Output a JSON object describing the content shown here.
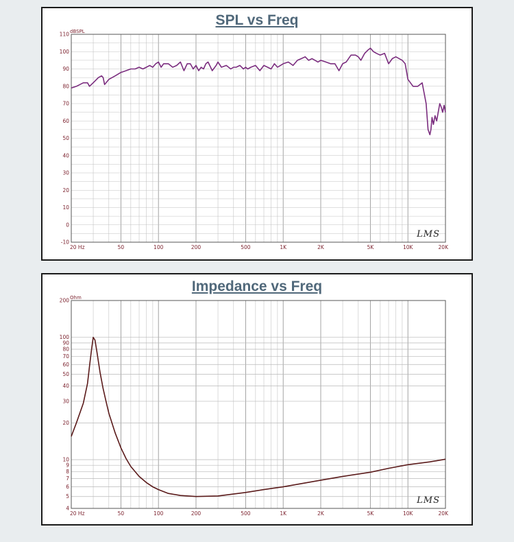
{
  "chart_data": [
    {
      "type": "line",
      "title": "SPL vs Freq",
      "ylabel": "dBSPL",
      "xscale": "log",
      "xlim": [
        20,
        20000
      ],
      "ylim": [
        -10,
        110
      ],
      "grid": true,
      "watermark": "LMS",
      "line_color": "#7a2c7e",
      "x_ticks": [
        {
          "value": 20,
          "label": "20  Hz"
        },
        {
          "value": 50,
          "label": "50"
        },
        {
          "value": 100,
          "label": "100"
        },
        {
          "value": 200,
          "label": "200"
        },
        {
          "value": 500,
          "label": "500"
        },
        {
          "value": 1000,
          "label": "1K"
        },
        {
          "value": 2000,
          "label": "2K"
        },
        {
          "value": 5000,
          "label": "5K"
        },
        {
          "value": 10000,
          "label": "10K"
        },
        {
          "value": 20000,
          "label": "20K"
        }
      ],
      "y_ticks": [
        {
          "value": 110,
          "label": "110"
        },
        {
          "value": 100,
          "label": "100"
        },
        {
          "value": 90,
          "label": "90"
        },
        {
          "value": 80,
          "label": "80"
        },
        {
          "value": 70,
          "label": "70"
        },
        {
          "value": 60,
          "label": "60"
        },
        {
          "value": 50,
          "label": "50"
        },
        {
          "value": 40,
          "label": "40"
        },
        {
          "value": 30,
          "label": "30"
        },
        {
          "value": 20,
          "label": "20"
        },
        {
          "value": 10,
          "label": "10"
        },
        {
          "value": 0,
          "label": "0"
        },
        {
          "value": -10,
          "label": "-10"
        }
      ],
      "series": [
        {
          "x": [
            20,
            22,
            25,
            27,
            28,
            30,
            33,
            35,
            36,
            37,
            40,
            45,
            50,
            55,
            60,
            65,
            70,
            75,
            80,
            85,
            90,
            95,
            100,
            105,
            110,
            120,
            130,
            140,
            150,
            160,
            170,
            180,
            190,
            200,
            210,
            220,
            230,
            240,
            250,
            270,
            290,
            300,
            320,
            350,
            380,
            400,
            420,
            450,
            480,
            500,
            520,
            550,
            600,
            650,
            700,
            750,
            800,
            850,
            900,
            950,
            1000,
            1100,
            1200,
            1300,
            1400,
            1500,
            1600,
            1700,
            1800,
            1900,
            2000,
            2200,
            2400,
            2600,
            2800,
            3000,
            3200,
            3500,
            3800,
            4000,
            4200,
            4500,
            4800,
            5000,
            5300,
            5600,
            6000,
            6500,
            7000,
            7500,
            8000,
            8500,
            9000,
            9500,
            10000,
            11000,
            12000,
            13000,
            14000,
            14500,
            15000,
            15300,
            15600,
            16000,
            16500,
            17000,
            17500,
            18000,
            18500,
            19000,
            19500,
            20000
          ],
          "y": [
            79,
            80,
            82,
            82,
            80,
            82,
            85,
            86,
            85,
            81,
            84,
            86,
            88,
            89,
            90,
            90,
            91,
            90,
            91,
            92,
            91,
            93,
            94,
            91,
            93,
            93,
            91,
            92,
            94,
            89,
            93,
            93,
            90,
            92,
            89,
            91,
            90,
            93,
            94,
            89,
            92,
            94,
            91,
            92,
            90,
            91,
            91,
            92,
            90,
            91,
            90,
            91,
            92,
            89,
            92,
            91,
            90,
            93,
            91,
            92,
            93,
            94,
            92,
            95,
            96,
            97,
            95,
            96,
            95,
            94,
            95,
            94,
            93,
            93,
            89,
            93,
            94,
            98,
            98,
            97,
            95,
            99,
            101,
            102,
            100,
            99,
            98,
            99,
            93,
            96,
            97,
            96,
            95,
            93,
            84,
            80,
            80,
            82,
            70,
            55,
            52,
            55,
            62,
            58,
            63,
            60,
            65,
            70,
            68,
            65,
            69,
            65
          ]
        }
      ]
    },
    {
      "type": "line",
      "title": "Impedance vs Freq",
      "ylabel": "Ohm",
      "xscale": "log",
      "yscale": "log",
      "xlim": [
        20,
        20000
      ],
      "ylim": [
        4,
        200
      ],
      "grid": true,
      "watermark": "LMS",
      "line_color": "#5a1a1a",
      "x_ticks": [
        {
          "value": 20,
          "label": "20  Hz"
        },
        {
          "value": 50,
          "label": "50"
        },
        {
          "value": 100,
          "label": "100"
        },
        {
          "value": 200,
          "label": "200"
        },
        {
          "value": 500,
          "label": "500"
        },
        {
          "value": 1000,
          "label": "1K"
        },
        {
          "value": 2000,
          "label": "2K"
        },
        {
          "value": 5000,
          "label": "5K"
        },
        {
          "value": 10000,
          "label": "10K"
        },
        {
          "value": 20000,
          "label": "20K"
        }
      ],
      "y_ticks": [
        {
          "value": 200,
          "label": "200"
        },
        {
          "value": 100,
          "label": "100"
        },
        {
          "value": 90,
          "label": "90"
        },
        {
          "value": 80,
          "label": "80"
        },
        {
          "value": 70,
          "label": "70"
        },
        {
          "value": 60,
          "label": "60"
        },
        {
          "value": 50,
          "label": "50"
        },
        {
          "value": 40,
          "label": "40"
        },
        {
          "value": 30,
          "label": "30"
        },
        {
          "value": 20,
          "label": "20"
        },
        {
          "value": 10,
          "label": "10"
        },
        {
          "value": 9,
          "label": "9"
        },
        {
          "value": 8,
          "label": "8"
        },
        {
          "value": 7,
          "label": "7"
        },
        {
          "value": 6,
          "label": "6"
        },
        {
          "value": 5,
          "label": "5"
        },
        {
          "value": 4,
          "label": "4"
        }
      ],
      "series": [
        {
          "x": [
            20,
            22,
            25,
            27,
            28,
            29,
            30,
            31,
            32,
            34,
            36,
            38,
            40,
            45,
            50,
            55,
            60,
            70,
            80,
            90,
            100,
            120,
            150,
            200,
            300,
            500,
            700,
            1000,
            2000,
            3000,
            5000,
            7000,
            10000,
            15000,
            20000
          ],
          "y": [
            15.5,
            20,
            29,
            42,
            58,
            78,
            100,
            95,
            78,
            52,
            38,
            30,
            24,
            16.5,
            12.5,
            10.2,
            8.8,
            7.3,
            6.5,
            6.0,
            5.7,
            5.3,
            5.1,
            5.0,
            5.05,
            5.4,
            5.7,
            6.0,
            6.8,
            7.3,
            7.9,
            8.5,
            9.1,
            9.6,
            10.1
          ]
        }
      ]
    }
  ]
}
